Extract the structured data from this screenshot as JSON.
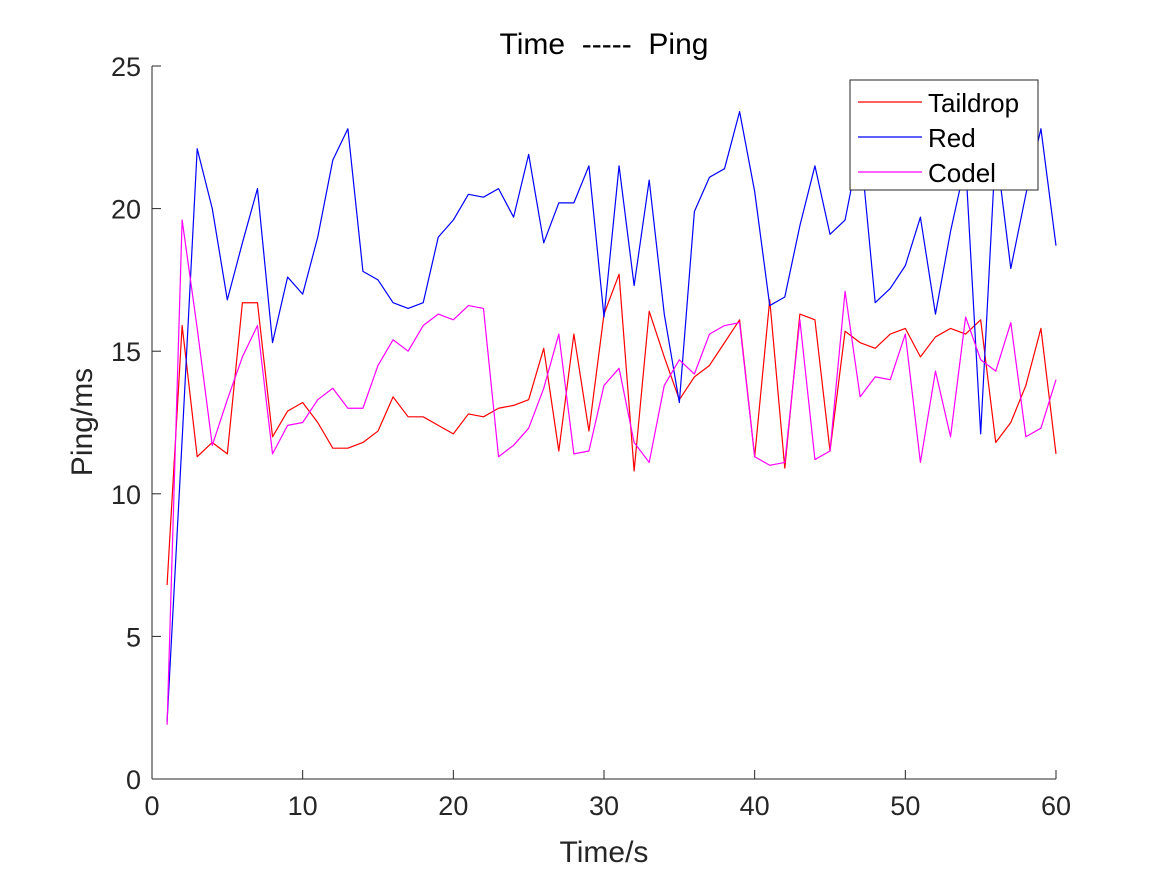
{
  "chart_data": {
    "type": "line",
    "title": "Time  -----  Ping",
    "xlabel": "Time/s",
    "ylabel": "Ping/ms",
    "xlim": [
      0,
      60
    ],
    "ylim": [
      0,
      25
    ],
    "xticks": [
      0,
      10,
      20,
      30,
      40,
      50,
      60
    ],
    "yticks": [
      0,
      5,
      10,
      15,
      20,
      25
    ],
    "grid": false,
    "legend_position": "top-right",
    "x": [
      1,
      2,
      3,
      4,
      5,
      6,
      7,
      8,
      9,
      10,
      11,
      12,
      13,
      14,
      15,
      16,
      17,
      18,
      19,
      20,
      21,
      22,
      23,
      24,
      25,
      26,
      27,
      28,
      29,
      30,
      31,
      32,
      33,
      34,
      35,
      36,
      37,
      38,
      39,
      40,
      41,
      42,
      43,
      44,
      45,
      46,
      47,
      48,
      49,
      50,
      51,
      52,
      53,
      54,
      55,
      56,
      57,
      58,
      59,
      60
    ],
    "series": [
      {
        "name": "Taildrop",
        "color": "#ff0000",
        "values": [
          6.8,
          15.9,
          11.3,
          11.8,
          11.4,
          16.7,
          16.7,
          12.0,
          12.9,
          13.2,
          12.5,
          11.6,
          11.6,
          11.8,
          12.2,
          13.4,
          12.7,
          12.7,
          12.4,
          12.1,
          12.8,
          12.7,
          13.0,
          13.1,
          13.3,
          15.1,
          11.5,
          15.6,
          12.2,
          16.3,
          17.7,
          10.8,
          16.4,
          14.8,
          13.3,
          14.1,
          14.5,
          15.3,
          16.1,
          11.3,
          16.8,
          10.9,
          16.3,
          16.1,
          11.5,
          15.7,
          15.3,
          15.1,
          15.6,
          15.8,
          14.8,
          15.5,
          15.8,
          15.6,
          16.1,
          11.8,
          12.5,
          13.8,
          15.8,
          11.4
        ]
      },
      {
        "name": "Red",
        "color": "#0000ff",
        "values": [
          2.0,
          11.9,
          22.1,
          20.0,
          16.8,
          18.8,
          20.7,
          15.3,
          17.6,
          17.0,
          19.0,
          21.7,
          22.8,
          17.8,
          17.5,
          16.7,
          16.5,
          16.7,
          19.0,
          19.6,
          20.5,
          20.4,
          20.7,
          19.7,
          21.9,
          18.8,
          20.2,
          20.2,
          21.5,
          16.2,
          21.5,
          17.3,
          21.0,
          16.3,
          13.2,
          19.9,
          21.1,
          21.4,
          23.4,
          20.6,
          16.6,
          16.9,
          19.4,
          21.5,
          19.1,
          19.6,
          22.3,
          16.7,
          17.2,
          18.0,
          19.7,
          16.3,
          19.2,
          21.6,
          12.1,
          22.2,
          17.9,
          20.5,
          22.8,
          18.7
        ]
      },
      {
        "name": "Codel",
        "color": "#ff00ff",
        "values": [
          1.9,
          19.6,
          15.8,
          11.7,
          13.3,
          14.8,
          15.9,
          11.4,
          12.4,
          12.5,
          13.3,
          13.7,
          13.0,
          13.0,
          14.5,
          15.4,
          15.0,
          15.9,
          16.3,
          16.1,
          16.6,
          16.5,
          11.3,
          11.7,
          12.3,
          13.7,
          15.6,
          11.4,
          11.5,
          13.8,
          14.4,
          11.8,
          11.1,
          13.8,
          14.7,
          14.2,
          15.6,
          15.9,
          16.0,
          11.3,
          11.0,
          11.1,
          16.1,
          11.2,
          11.5,
          17.1,
          13.4,
          14.1,
          14.0,
          15.6,
          11.1,
          14.3,
          12.0,
          16.2,
          14.7,
          14.3,
          16.0,
          12.0,
          12.3,
          14.0
        ]
      }
    ]
  }
}
